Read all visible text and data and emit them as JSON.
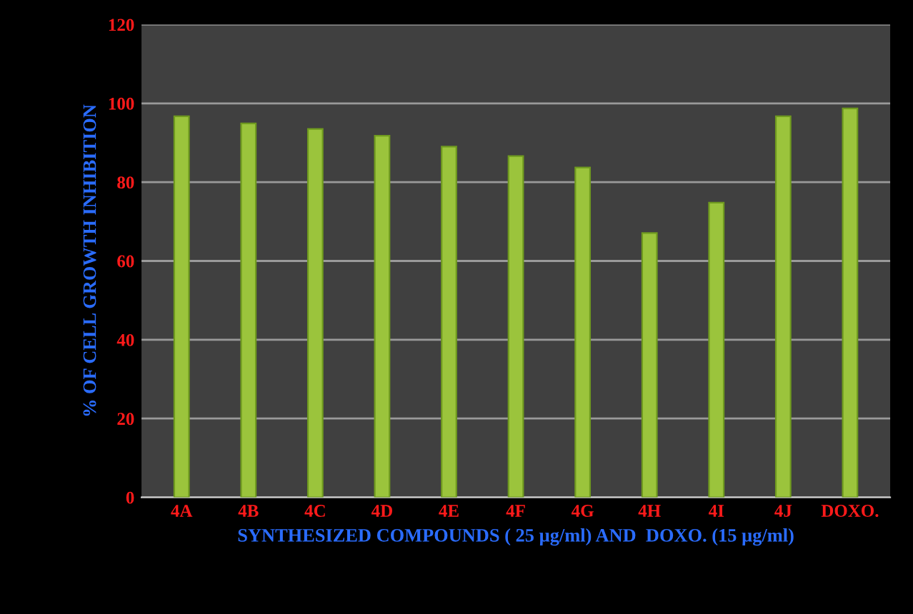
{
  "chart_data": {
    "type": "bar",
    "xlabel": "SYNTHESIZED COMPOUNDS ( 25 µg/ml) AND  DOXO. (15 µg/ml)",
    "ylabel": "% OF CELL GROWTH INHIBITION",
    "categories": [
      "4A",
      "4B",
      "4C",
      "4D",
      "4E",
      "4F",
      "4G",
      "4H",
      "4I",
      "4J",
      "DOXO."
    ],
    "values": [
      96.7,
      94.9,
      93.5,
      91.8,
      89.0,
      86.6,
      83.7,
      67.1,
      74.8,
      96.7,
      98.7
    ],
    "color": "#9bc43c",
    "ylim": [
      0,
      120
    ],
    "yticks": [
      0,
      20,
      40,
      60,
      80,
      100,
      120
    ],
    "grid": "y"
  }
}
